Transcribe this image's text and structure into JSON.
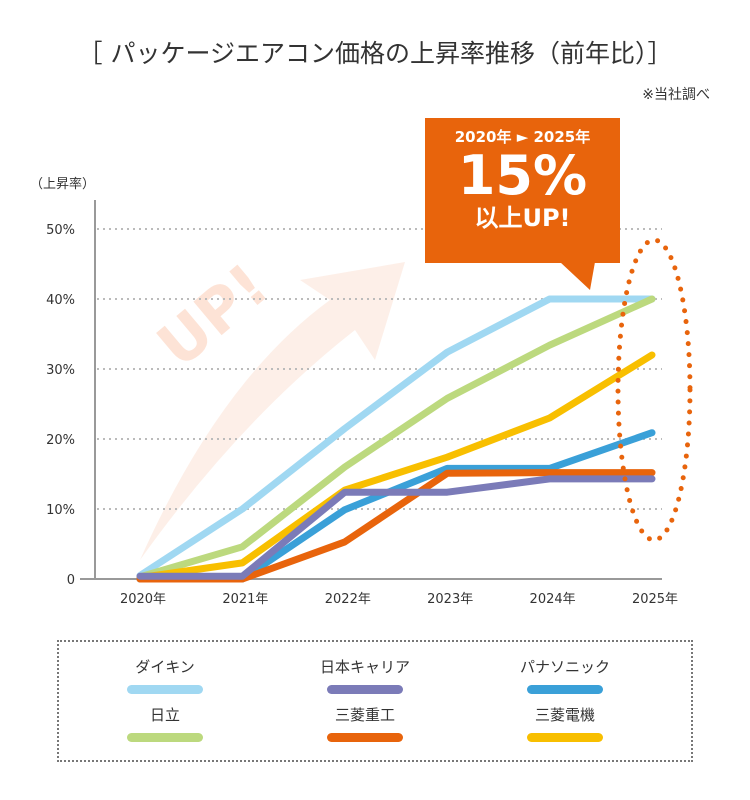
{
  "title": "［ パッケージエアコン価格の上昇率推移（前年比）］",
  "note": "※当社調べ",
  "callout": {
    "years": "2020年 ► 2025年",
    "value": "15%",
    "text": "以上UP!"
  },
  "watermark": "UP!",
  "chart_data": {
    "type": "line",
    "ylabel": "（上昇率）",
    "categories": [
      "2020年",
      "2021年",
      "2022年",
      "2023年",
      "2024年",
      "2025年"
    ],
    "yticks": [
      "0",
      "10%",
      "20%",
      "30%",
      "40%",
      "50%"
    ],
    "ylim": [
      0,
      50
    ],
    "grid": true,
    "legend_position": "bottom",
    "series": [
      {
        "name": "ダイキン",
        "color": "#a0d8f2",
        "values": [
          0.5,
          10,
          21.5,
          32.4,
          40,
          40
        ]
      },
      {
        "name": "日立",
        "color": "#bcd97e",
        "values": [
          0.3,
          4.6,
          16,
          25.8,
          33.4,
          40
        ]
      },
      {
        "name": "三菱電機",
        "color": "#f8bf00",
        "values": [
          0.2,
          2.3,
          12.7,
          17.4,
          23,
          32
        ]
      },
      {
        "name": "パナソニック",
        "color": "#3aa0d8",
        "values": [
          0,
          0,
          9.9,
          15.8,
          15.8,
          20.9
        ]
      },
      {
        "name": "三菱重工",
        "color": "#e8640c",
        "values": [
          0,
          0,
          5.3,
          15.1,
          15.2,
          15.2
        ]
      },
      {
        "name": "日本キャリア",
        "color": "#7b7bb8",
        "values": [
          0.4,
          0.4,
          12.4,
          12.4,
          14.3,
          14.3
        ]
      }
    ]
  },
  "legend": [
    {
      "name": "ダイキン",
      "color": "#a0d8f2"
    },
    {
      "name": "日本キャリア",
      "color": "#7b7bb8"
    },
    {
      "name": "パナソニック",
      "color": "#3aa0d8"
    },
    {
      "name": "日立",
      "color": "#bcd97e"
    },
    {
      "name": "三菱重工",
      "color": "#e8640c"
    },
    {
      "name": "三菱電機",
      "color": "#f8bf00"
    }
  ]
}
